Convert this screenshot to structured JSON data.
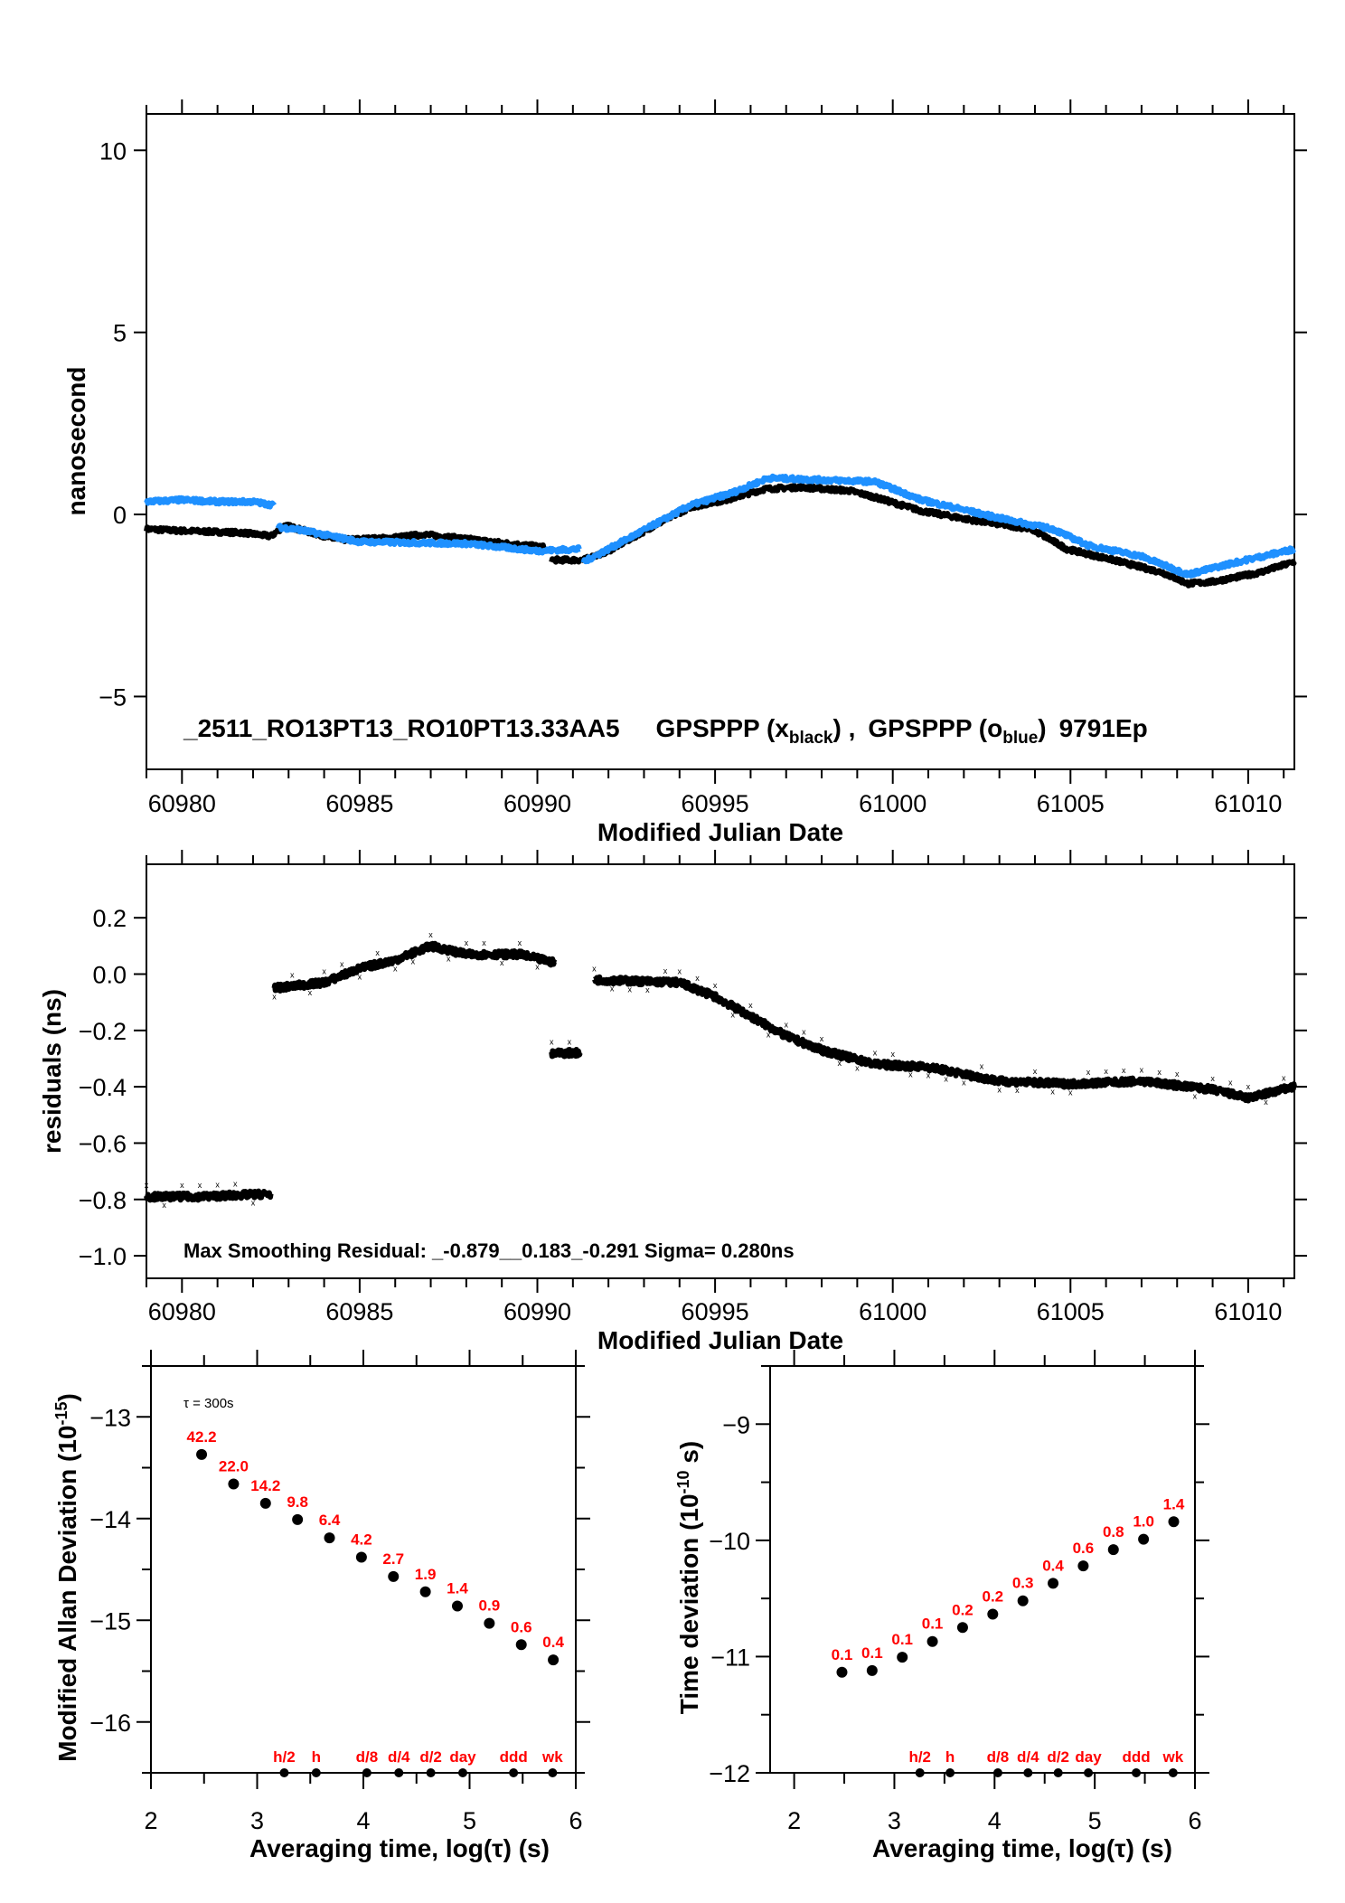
{
  "colors": {
    "black_series": "#000000",
    "blue_series": "#1e90ff",
    "labels": "#ff0000"
  },
  "chart_data": [
    {
      "type": "line",
      "title_parts": {
        "id": "_2511_RO13PT13_RO10PT13.33AA5",
        "s1_pre": "GPSPPP (x",
        "s1_sub": "black",
        "s1_post": ") ,",
        "s2_pre": "GPSPPP (o",
        "s2_sub": "blue",
        "s2_post": ")",
        "tail": "9791Ep"
      },
      "xlabel": "Modified Julian Date",
      "ylabel": "nanosecond",
      "xlim": [
        60979.0,
        61011.3
      ],
      "ylim": [
        -7,
        11
      ],
      "xticks": [
        "60980",
        "60985",
        "60990",
        "60995",
        "61000",
        "61005",
        "61010"
      ],
      "yticks": [
        "10",
        "5",
        "0",
        "−5"
      ],
      "series": [
        {
          "color": "black",
          "segments": [
            [
              [
                60979,
                -0.4
              ],
              [
                60980,
                -0.45
              ],
              [
                60981.7,
                -0.5
              ],
              [
                60982.5,
                -0.6
              ],
              [
                60982.9,
                -0.3
              ],
              [
                60984.4,
                -0.7
              ],
              [
                60985.8,
                -0.65
              ],
              [
                60986.8,
                -0.55
              ],
              [
                60987.8,
                -0.65
              ],
              [
                60989.2,
                -0.8
              ],
              [
                60990.2,
                -0.9
              ]
            ],
            [
              [
                60990.4,
                -1.25
              ],
              [
                60991.3,
                -1.25
              ],
              [
                60992,
                -1.0
              ],
              [
                60993.3,
                -0.3
              ],
              [
                60994.3,
                0.2
              ],
              [
                60995.3,
                0.4
              ],
              [
                60996.4,
                0.7
              ],
              [
                60997.4,
                0.75
              ],
              [
                60998.8,
                0.65
              ],
              [
                60999.4,
                0.5
              ],
              [
                61000.8,
                0.1
              ],
              [
                61002.2,
                -0.15
              ],
              [
                61003.9,
                -0.4
              ],
              [
                61004.9,
                -0.95
              ],
              [
                61006.2,
                -1.25
              ],
              [
                61007.6,
                -1.6
              ],
              [
                61008.3,
                -1.9
              ],
              [
                61009,
                -1.85
              ],
              [
                61010.3,
                -1.6
              ],
              [
                61011.3,
                -1.3
              ]
            ]
          ]
        },
        {
          "color": "blue",
          "segments": [
            [
              [
                60979,
                0.35
              ],
              [
                60980,
                0.4
              ],
              [
                60981,
                0.35
              ],
              [
                60982,
                0.35
              ],
              [
                60982.6,
                0.25
              ]
            ],
            [
              [
                60982.7,
                -0.35
              ],
              [
                60983.2,
                -0.4
              ],
              [
                60985,
                -0.75
              ],
              [
                60988,
                -0.8
              ],
              [
                60990,
                -1.0
              ],
              [
                60991.2,
                -0.95
              ]
            ],
            [
              [
                60991.3,
                -1.3
              ],
              [
                60992,
                -0.95
              ],
              [
                60994.3,
                0.25
              ],
              [
                60995.5,
                0.6
              ],
              [
                60996.5,
                1.0
              ],
              [
                60998,
                0.95
              ],
              [
                60999.5,
                0.9
              ],
              [
                61000.8,
                0.4
              ],
              [
                61003,
                -0.1
              ],
              [
                61004.5,
                -0.4
              ],
              [
                61005.5,
                -0.85
              ],
              [
                61007,
                -1.15
              ],
              [
                61008.3,
                -1.65
              ],
              [
                61009.5,
                -1.35
              ],
              [
                61011.3,
                -0.95
              ]
            ]
          ]
        }
      ]
    },
    {
      "type": "scatter",
      "annotation": "Max Smoothing Residual: _-0.879__0.183_-0.291  Sigma= 0.280ns",
      "xlabel": "Modified Julian Date",
      "ylabel": "residuals (ns)",
      "xlim": [
        60979.0,
        61011.3
      ],
      "ylim": [
        -1.08,
        0.39
      ],
      "xticks": [
        "60980",
        "60985",
        "60990",
        "60995",
        "61000",
        "61005",
        "61010"
      ],
      "yticks": [
        "0.2",
        "0.0",
        "−0.2",
        "−0.4",
        "−0.6",
        "−0.8",
        "−1.0"
      ],
      "segments": [
        [
          [
            60979,
            -0.79
          ],
          [
            60980.5,
            -0.79
          ],
          [
            60982.5,
            -0.78
          ]
        ],
        [
          [
            60982.6,
            -0.05
          ],
          [
            60984,
            -0.03
          ],
          [
            60985,
            0.02
          ],
          [
            60986,
            0.05
          ],
          [
            60987,
            0.1
          ],
          [
            60988,
            0.07
          ],
          [
            60989.5,
            0.07
          ],
          [
            60990.5,
            0.04
          ]
        ],
        [
          [
            60990.4,
            -0.28
          ],
          [
            60991.2,
            -0.28
          ]
        ],
        [
          [
            60991.6,
            -0.02
          ],
          [
            60994,
            -0.03
          ],
          [
            60995,
            -0.08
          ],
          [
            60996,
            -0.15
          ],
          [
            60997,
            -0.22
          ],
          [
            60998,
            -0.27
          ],
          [
            60999.5,
            -0.32
          ],
          [
            61001,
            -0.33
          ],
          [
            61003,
            -0.38
          ],
          [
            61005,
            -0.39
          ],
          [
            61007,
            -0.38
          ],
          [
            61009,
            -0.41
          ],
          [
            61010,
            -0.44
          ],
          [
            61011.3,
            -0.4
          ]
        ]
      ]
    },
    {
      "type": "scatter",
      "xlabel": "Averaging time, log(τ) (s)",
      "ylabel_parts": {
        "pre": "Modified Allan Deviation (10",
        "sup": "-15",
        "post": ")"
      },
      "note": "τ = 300s",
      "xlim": [
        2,
        6
      ],
      "ylim": [
        -16.5,
        -12.5
      ],
      "xticks": [
        "2",
        "3",
        "4",
        "5",
        "6"
      ],
      "yticks": [
        "−13",
        "−14",
        "−15",
        "−16"
      ],
      "x": [
        2.477,
        2.778,
        3.079,
        3.38,
        3.681,
        3.982,
        4.283,
        4.584,
        4.885,
        5.186,
        5.487,
        5.788
      ],
      "y": [
        -13.37,
        -13.66,
        -13.85,
        -14.01,
        -14.19,
        -14.38,
        -14.57,
        -14.72,
        -14.86,
        -15.03,
        -15.24,
        -15.39
      ],
      "point_labels": [
        "42.2",
        "22.0",
        "14.2",
        "9.8",
        "6.4",
        "4.2",
        "2.7",
        "1.9",
        "1.4",
        "0.9",
        "0.6",
        "0.4"
      ],
      "markers": [
        {
          "label": "h/2",
          "x": 3.255
        },
        {
          "label": "h",
          "x": 3.556
        },
        {
          "label": "d/8",
          "x": 4.033
        },
        {
          "label": "d/4",
          "x": 4.334
        },
        {
          "label": "d/2",
          "x": 4.635
        },
        {
          "label": "day",
          "x": 4.936
        },
        {
          "label": "ddd",
          "x": 5.414
        },
        {
          "label": "wk",
          "x": 5.782
        }
      ]
    },
    {
      "type": "scatter",
      "xlabel": "Averaging time, log(τ) (s)",
      "ylabel_parts": {
        "pre": "Time deviation (10",
        "sup": "-10",
        "post": " s)"
      },
      "xlim": [
        1.76,
        6
      ],
      "ylim": [
        -12,
        -8.5
      ],
      "xticks": [
        "2",
        "3",
        "4",
        "5",
        "6"
      ],
      "yticks": [
        "−9",
        "−10",
        "−11",
        "−12"
      ],
      "x": [
        2.477,
        2.778,
        3.079,
        3.38,
        3.681,
        3.982,
        4.283,
        4.584,
        4.885,
        5.186,
        5.487,
        5.788
      ],
      "y": [
        -11.135,
        -11.12,
        -11.005,
        -10.87,
        -10.75,
        -10.635,
        -10.52,
        -10.37,
        -10.22,
        -10.08,
        -9.99,
        -9.84
      ],
      "point_labels": [
        "0.1",
        "0.1",
        "0.1",
        "0.1",
        "0.2",
        "0.2",
        "0.3",
        "0.4",
        "0.6",
        "0.8",
        "1.0",
        "1.4"
      ],
      "markers": [
        {
          "label": "h/2",
          "x": 3.255
        },
        {
          "label": "h",
          "x": 3.556
        },
        {
          "label": "d/8",
          "x": 4.033
        },
        {
          "label": "d/4",
          "x": 4.334
        },
        {
          "label": "d/2",
          "x": 4.635
        },
        {
          "label": "day",
          "x": 4.936
        },
        {
          "label": "ddd",
          "x": 5.414
        },
        {
          "label": "wk",
          "x": 5.782
        }
      ]
    }
  ]
}
